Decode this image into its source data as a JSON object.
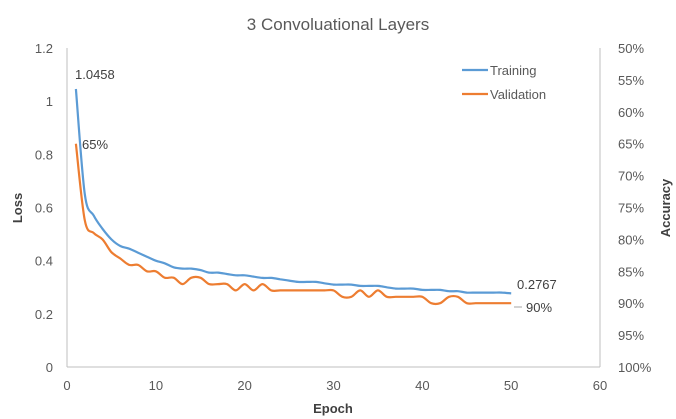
{
  "chart_data": {
    "type": "line",
    "title": "3 Convoluational Layers",
    "xlabel": "Epoch",
    "ylabel": "Loss",
    "y2label": "Accuracy",
    "xlim": [
      0,
      60
    ],
    "ylim": [
      0,
      1.2
    ],
    "y2lim": [
      50,
      100
    ],
    "y2_reversed": true,
    "x_ticks": [
      "0",
      "10",
      "20",
      "30",
      "40",
      "50",
      "60"
    ],
    "y_ticks": [
      "0",
      "0.2",
      "0.4",
      "0.6",
      "0.8",
      "1",
      "1.2"
    ],
    "y2_ticks": [
      "50%",
      "55%",
      "60%",
      "65%",
      "70%",
      "75%",
      "80%",
      "85%",
      "90%",
      "95%",
      "100%"
    ],
    "grid": false,
    "legend_position": "top-right",
    "colors": {
      "training": "#5B9BD5",
      "validation": "#ED7D31"
    },
    "series": [
      {
        "name": "Training",
        "axis": "left",
        "x": [
          1,
          2,
          3,
          4,
          5,
          6,
          7,
          8,
          9,
          10,
          11,
          12,
          13,
          14,
          15,
          16,
          17,
          18,
          19,
          20,
          21,
          22,
          23,
          24,
          25,
          26,
          27,
          28,
          29,
          30,
          31,
          32,
          33,
          34,
          35,
          36,
          37,
          38,
          39,
          40,
          41,
          42,
          43,
          44,
          45,
          46,
          47,
          48,
          49,
          50
        ],
        "values": [
          1.0458,
          0.65,
          0.57,
          0.52,
          0.48,
          0.455,
          0.445,
          0.43,
          0.415,
          0.4,
          0.39,
          0.375,
          0.37,
          0.37,
          0.365,
          0.355,
          0.355,
          0.35,
          0.345,
          0.345,
          0.34,
          0.335,
          0.335,
          0.33,
          0.325,
          0.32,
          0.32,
          0.32,
          0.315,
          0.31,
          0.31,
          0.31,
          0.305,
          0.305,
          0.305,
          0.3,
          0.295,
          0.295,
          0.295,
          0.29,
          0.29,
          0.29,
          0.285,
          0.285,
          0.28,
          0.28,
          0.28,
          0.28,
          0.28,
          0.2767
        ]
      },
      {
        "name": "Validation",
        "axis": "right",
        "x": [
          1,
          2,
          3,
          4,
          5,
          6,
          7,
          8,
          9,
          10,
          11,
          12,
          13,
          14,
          15,
          16,
          17,
          18,
          19,
          20,
          21,
          22,
          23,
          24,
          25,
          26,
          27,
          28,
          29,
          30,
          31,
          32,
          33,
          34,
          35,
          36,
          37,
          38,
          39,
          40,
          41,
          42,
          43,
          44,
          45,
          46,
          47,
          48,
          49,
          50
        ],
        "values": [
          65,
          77,
          79,
          80,
          82,
          83,
          84,
          84,
          85,
          85,
          86,
          86,
          87,
          86,
          86,
          87,
          87,
          87,
          88,
          87,
          88,
          87,
          88,
          88,
          88,
          88,
          88,
          88,
          88,
          88,
          89,
          89,
          88,
          89,
          88,
          89,
          89,
          89,
          89,
          89,
          90,
          90,
          89,
          89,
          90,
          90,
          90,
          90,
          90,
          90
        ]
      }
    ],
    "annotations": {
      "training_start": "1.0458",
      "training_end": "0.2767",
      "validation_start": "65%",
      "validation_end": "90%"
    }
  }
}
